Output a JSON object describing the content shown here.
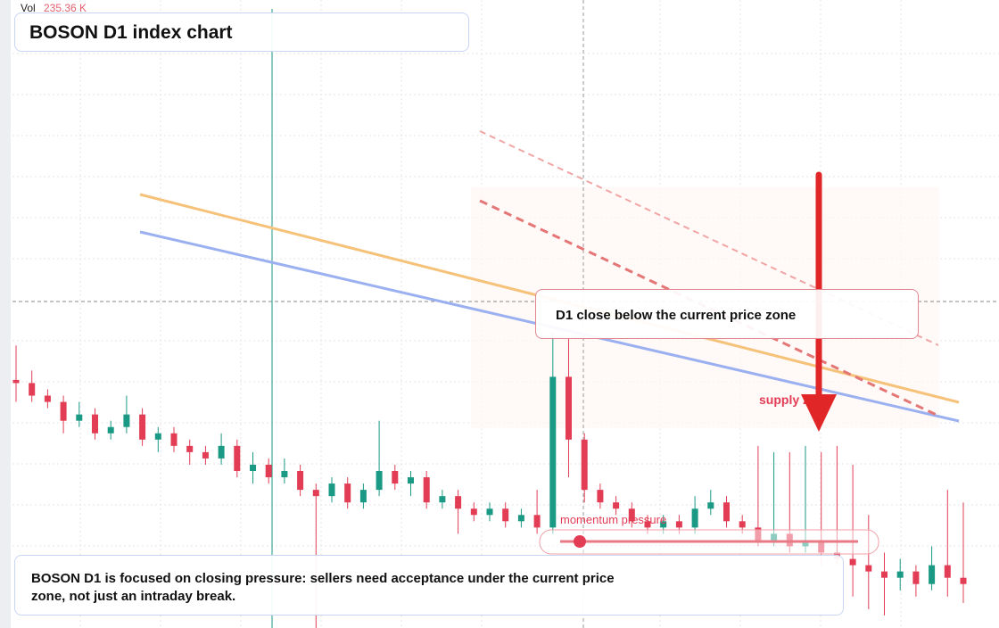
{
  "header": {
    "title": "BOSON D1 index chart"
  },
  "volume": {
    "label": "Vol",
    "value": "235.36 K"
  },
  "annotations": {
    "callout": "D1 close below the current price zone",
    "zone_label": "supply zone",
    "indicator_label": "momentum pressure",
    "note": "BOSON D1 is focused on closing pressure: sellers need acceptance under the current price zone, not just an intraday break."
  },
  "chart_data": {
    "type": "candlestick",
    "ylim": [
      0,
      100
    ],
    "up_color": "#1a9a84",
    "down_color": "#e23d55",
    "candles": [
      [
        39.5,
        45,
        36,
        39
      ],
      [
        39,
        41,
        36,
        37
      ],
      [
        37,
        38,
        35,
        36
      ],
      [
        36,
        37,
        31,
        33
      ],
      [
        33,
        36,
        32,
        34
      ],
      [
        34,
        35,
        30,
        31
      ],
      [
        31,
        33,
        30,
        32
      ],
      [
        32,
        37,
        31,
        34
      ],
      [
        34,
        35,
        29,
        30
      ],
      [
        30,
        32,
        28,
        31
      ],
      [
        31,
        32,
        28,
        29
      ],
      [
        29,
        30,
        26,
        28
      ],
      [
        28,
        29,
        26,
        27
      ],
      [
        27,
        31,
        26,
        29
      ],
      [
        29,
        30,
        24,
        25
      ],
      [
        25,
        28,
        23,
        26
      ],
      [
        26,
        27,
        23,
        24
      ],
      [
        24,
        27,
        23,
        25
      ],
      [
        25,
        26,
        21,
        22
      ],
      [
        22,
        23,
        0,
        21
      ],
      [
        21,
        24,
        20,
        23
      ],
      [
        23,
        24,
        19,
        20
      ],
      [
        20,
        23,
        19,
        22
      ],
      [
        22,
        33,
        21,
        25
      ],
      [
        25,
        26,
        22,
        23
      ],
      [
        23,
        25,
        21,
        24
      ],
      [
        24,
        25,
        19,
        20
      ],
      [
        20,
        22,
        19,
        21
      ],
      [
        21,
        22,
        15,
        19
      ],
      [
        19,
        20,
        17,
        18
      ],
      [
        18,
        20,
        17,
        19
      ],
      [
        19,
        20,
        16,
        17
      ],
      [
        17,
        19,
        16,
        18
      ],
      [
        18,
        22,
        15,
        16
      ],
      [
        16,
        47,
        15,
        40
      ],
      [
        40,
        46,
        24,
        30
      ],
      [
        30,
        31,
        20,
        22
      ],
      [
        22,
        23,
        19,
        20
      ],
      [
        20,
        21,
        18,
        19
      ],
      [
        19,
        20,
        16,
        17
      ],
      [
        17,
        18,
        15,
        16
      ],
      [
        16,
        18,
        15,
        17
      ],
      [
        17,
        18,
        15,
        16
      ],
      [
        16,
        21,
        15,
        19
      ],
      [
        19,
        22,
        18,
        20
      ],
      [
        20,
        21,
        16,
        17
      ],
      [
        17,
        18,
        15,
        16
      ],
      [
        16,
        29,
        13,
        14
      ],
      [
        14,
        28,
        13,
        15
      ],
      [
        15,
        28,
        12,
        13
      ],
      [
        13,
        29,
        12,
        14
      ],
      [
        14,
        28,
        10,
        12
      ],
      [
        12,
        29,
        10,
        11
      ],
      [
        11,
        26,
        5,
        10
      ],
      [
        10,
        18,
        3,
        9
      ],
      [
        9,
        12,
        2,
        8
      ],
      [
        8,
        11,
        6,
        9
      ],
      [
        9,
        10,
        5,
        7
      ],
      [
        7,
        13,
        6,
        10
      ],
      [
        10,
        22,
        5,
        8
      ],
      [
        8,
        20,
        4,
        7
      ]
    ]
  }
}
